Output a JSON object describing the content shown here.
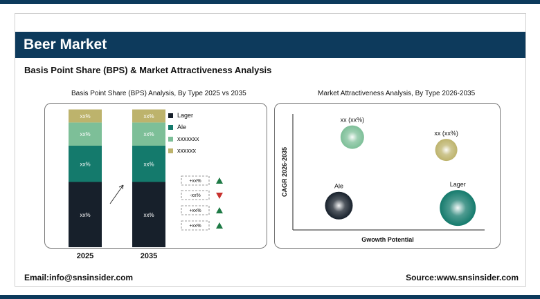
{
  "header": {
    "title": "Beer Market",
    "subtitle": "Basis Point Share (BPS) & Market Attractiveness Analysis"
  },
  "colors": {
    "navy": "#0d3a5c",
    "lager": "#17202b",
    "ale": "#147a6c",
    "seg3": "#7dbf98",
    "seg4": "#bdb36c",
    "up": "#1e7a45",
    "down": "#c8322f"
  },
  "footer": {
    "email": "Email:info@snsinsider.com",
    "source": "Source:www.snsinsider.com"
  },
  "chart_data": [
    {
      "type": "bar",
      "title": "Basis Point Share (BPS) Analysis, By Type 2025 vs 2035",
      "categories": [
        "2025",
        "2035"
      ],
      "stacked": true,
      "series": [
        {
          "name": "Lager",
          "values": [
            45,
            45
          ],
          "labels": [
            "xx%",
            "xx%"
          ]
        },
        {
          "name": "Ale",
          "values": [
            25,
            25
          ],
          "labels": [
            "xx%",
            "xx%"
          ]
        },
        {
          "name": "xxxxxxx",
          "values": [
            16,
            16
          ],
          "labels": [
            "xx%",
            "xx%"
          ]
        },
        {
          "name": "xxxxxx",
          "values": [
            9,
            9
          ],
          "labels": [
            "xx%",
            "xx%"
          ]
        }
      ],
      "legend": "right",
      "changes": [
        {
          "label": "+xx%",
          "direction": "up"
        },
        {
          "label": "-xx%",
          "direction": "down"
        },
        {
          "label": "+xx%",
          "direction": "up"
        },
        {
          "label": "+xx%",
          "direction": "up"
        }
      ]
    },
    {
      "type": "scatter",
      "title": "Market Attractiveness Analysis, By Type 2026-2035",
      "xlabel": "Gwowth Potential",
      "ylabel": "CAGR 2026-2035",
      "xlim": [
        0,
        100
      ],
      "ylim": [
        0,
        100
      ],
      "points": [
        {
          "label": "xx (xx%)",
          "x": 31,
          "y": 80,
          "size": 17,
          "color": "#7dbf98"
        },
        {
          "label": "xx (xx%)",
          "x": 80,
          "y": 69,
          "size": 16,
          "color": "#bdb36c"
        },
        {
          "label": "Ale",
          "x": 24,
          "y": 21,
          "size": 20,
          "color": "#17202b"
        },
        {
          "label": "Lager",
          "x": 86,
          "y": 19,
          "size": 26,
          "color": "#147a6c"
        }
      ]
    }
  ]
}
